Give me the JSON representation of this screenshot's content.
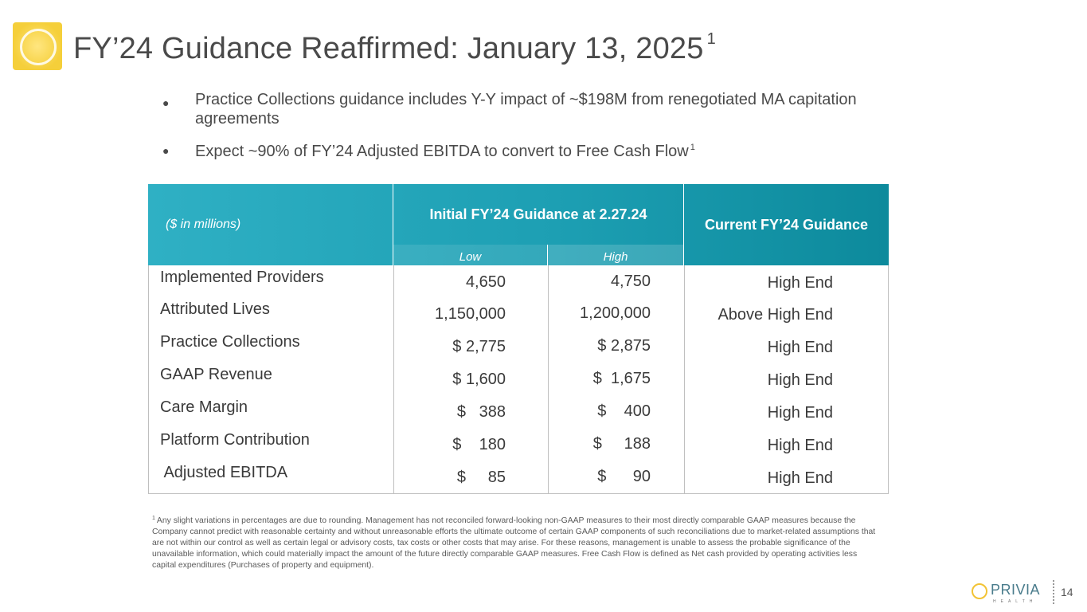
{
  "title": {
    "text": "FY’24 Guidance Reaffirmed: January 13, 2025",
    "sup": "1"
  },
  "bullets": [
    {
      "text": "Practice Collections guidance includes Y-Y impact of ~$198M from renegotiated MA capitation agreements",
      "sup": ""
    },
    {
      "text": "Expect ~90% of FY’24 Adjusted EBITDA to convert to Free Cash Flow",
      "sup": "1"
    }
  ],
  "table": {
    "units_label": "($ in millions)",
    "initial_header": "Initial FY’24 Guidance at 2.27.24",
    "low_label": "Low",
    "high_label": "High",
    "current_header": "Current FY’24 Guidance",
    "rows": [
      {
        "label": "Implemented Providers",
        "low": "4,650",
        "high": "4,750",
        "current": "High End"
      },
      {
        "label": "Attributed Lives",
        "low": "1,150,000",
        "high": "1,200,000",
        "current": "Above High End"
      },
      {
        "label": "Practice Collections",
        "low": "$ 2,775",
        "high": "$ 2,875",
        "current": "High End"
      },
      {
        "label": "GAAP Revenue",
        "low": "$ 1,600",
        "high": "$  1,675",
        "current": "High End"
      },
      {
        "label": "Care Margin",
        "low": "$   388",
        "high": "$    400",
        "current": "High End"
      },
      {
        "label": "Platform Contribution",
        "low": "$    180",
        "high": "$     188",
        "current": "High End"
      },
      {
        "label": " Adjusted EBITDA",
        "low": "$     85",
        "high": "$      90",
        "current": "High End"
      }
    ]
  },
  "footnote": {
    "sup": "1",
    "text": "Any slight variations in percentages are due to rounding. Management has not reconciled forward-looking non-GAAP measures to their most directly comparable GAAP measures because the Company cannot predict with reasonable certainty and without unreasonable efforts the ultimate outcome of certain GAAP components of such reconciliations due to market-related assumptions that are not within our control as well as certain legal or advisory costs, tax costs or other costs that may arise. For these reasons, management is unable to assess the probable significance of the unavailable information, which could materially impact the amount of the future directly comparable GAAP measures. Free Cash Flow is defined as Net cash provided by operating activities less capital expenditures (Purchases of property and equipment)."
  },
  "brand": {
    "name": "PRIVIA",
    "tagline": "HEALTH"
  },
  "page_number": "14",
  "colors": {
    "header_teal": "#1d9fb3",
    "logo_yellow": "#f5cf3a"
  }
}
